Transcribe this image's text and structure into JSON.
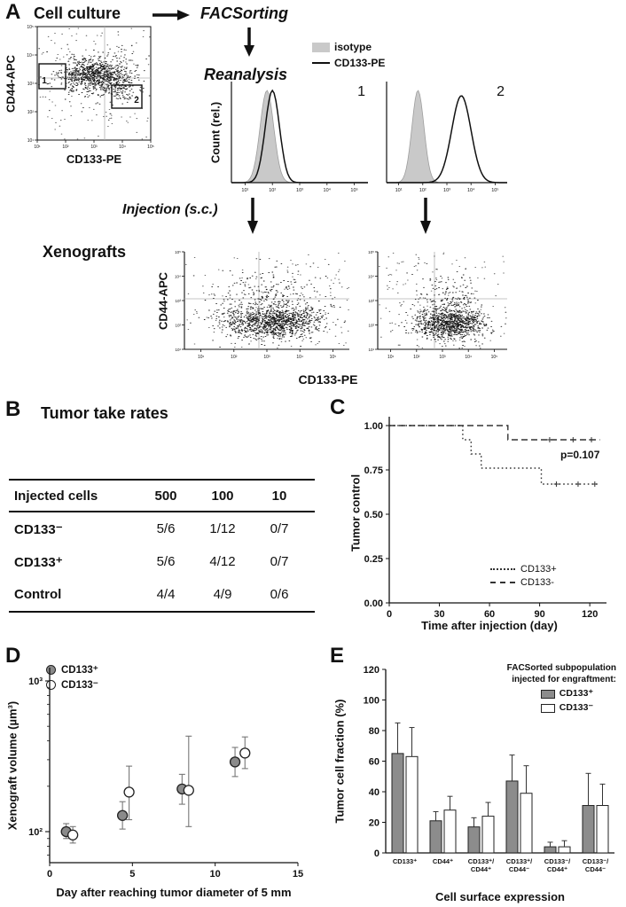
{
  "panelA": {
    "label": "A",
    "cell_culture": "Cell culture",
    "facsorting": "FACSorting",
    "reanalysis": "Reanalysis",
    "injection": "Injection (s.c.)",
    "xenografts": "Xenografts",
    "legend": {
      "isotype": "isotype",
      "cd133": "CD133-PE"
    },
    "sort_plot": {
      "ylabel": "CD44-APC",
      "xlabel": "CD133-PE",
      "gate1": "1",
      "gate2": "2",
      "xticks": [
        "10¹",
        "10²",
        "10³",
        "10⁴",
        "10⁵"
      ],
      "yticks": [
        "10⁵",
        "10⁴",
        "10³",
        "10²",
        "10¹"
      ]
    },
    "histograms": {
      "ylabel": "Count (rel.)",
      "panels": [
        {
          "label": "1"
        },
        {
          "label": "2"
        }
      ],
      "xticks": [
        "10¹",
        "10²",
        "10³",
        "10⁴",
        "10⁵"
      ]
    },
    "xeno_plots": {
      "ylabel": "CD44-APC",
      "xlabel": "CD133-PE",
      "xticks": [
        "10¹",
        "10²",
        "10³",
        "10⁴",
        "10⁵"
      ],
      "yticks": [
        "10⁵",
        "10⁴",
        "10³",
        "10²",
        "10¹"
      ]
    }
  },
  "panelB": {
    "label": "B",
    "title": "Tumor take rates",
    "table": {
      "header": [
        "Injected cells",
        "500",
        "100",
        "10"
      ],
      "rows": [
        [
          "CD133⁻",
          "5/6",
          "1/12",
          "0/7"
        ],
        [
          "CD133⁺",
          "5/6",
          "4/12",
          "0/7"
        ],
        [
          "Control",
          "4/4",
          "4/9",
          "0/6"
        ]
      ]
    }
  },
  "panelC": {
    "label": "C",
    "ylabel": "Tumor control",
    "xlabel": "Time after injection (day)",
    "pvalue": "p=0.107"
  },
  "panelD": {
    "label": "D",
    "ylabel": "Xenograft volume (µm³)",
    "xlabel": "Day after reaching tumor diameter of 5 mm"
  },
  "panelE": {
    "label": "E",
    "ylabel": "Tumor cell fraction (%)",
    "xlabel": "Cell surface expression",
    "legend_title_line1": "FACSorted subpopulation",
    "legend_title_line2": "injected for engraftment:"
  },
  "chart_data": [
    {
      "id": "panelC_tumor_control",
      "type": "line",
      "ylabel": "Tumor control",
      "xlabel": "Time after injection (day)",
      "xlim": [
        0,
        130
      ],
      "ylim": [
        0,
        1.05
      ],
      "xticks": [
        0,
        30,
        60,
        90,
        120
      ],
      "yticks": [
        {
          "v": 1.0,
          "label": "1.00"
        },
        {
          "v": 0.75,
          "label": "0.75"
        },
        {
          "v": 0.5,
          "label": "0.50"
        },
        {
          "v": 0.25,
          "label": "0.25"
        },
        {
          "v": 0.0,
          "label": "0.00"
        }
      ],
      "annotation": "p=0.107",
      "series": [
        {
          "name": "CD133+",
          "style": "dotted",
          "steps": [
            [
              0,
              1.0
            ],
            [
              44,
              1.0
            ],
            [
              44,
              0.92
            ],
            [
              49,
              0.92
            ],
            [
              49,
              0.84
            ],
            [
              55,
              0.84
            ],
            [
              55,
              0.76
            ],
            [
              91,
              0.76
            ],
            [
              91,
              0.67
            ],
            [
              126,
              0.67
            ]
          ],
          "censor_marks": [
            [
              100,
              0.67
            ],
            [
              113,
              0.67
            ],
            [
              123,
              0.67
            ]
          ]
        },
        {
          "name": "CD133-",
          "style": "dashed",
          "steps": [
            [
              0,
              1.0
            ],
            [
              71,
              1.0
            ],
            [
              71,
              0.92
            ],
            [
              126,
              0.92
            ]
          ],
          "censor_marks": [
            [
              96,
              0.92
            ],
            [
              110,
              0.92
            ],
            [
              121,
              0.92
            ]
          ]
        }
      ]
    },
    {
      "id": "panelD_xenograft_volume",
      "type": "scatter",
      "yscale": "log",
      "ylabel": "Xenograft volume (µm³)",
      "xlabel": "Day after reaching tumor diameter of 5 mm",
      "xlim": [
        0,
        15
      ],
      "xticks": [
        0,
        5,
        10,
        15
      ],
      "yticks": [
        {
          "value": 1000,
          "label": "10³"
        },
        {
          "value": 100,
          "label": "10²"
        }
      ],
      "series": [
        {
          "name": "CD133⁺",
          "marker": "filled",
          "points": [
            {
              "x": 1.0,
              "y": 100,
              "lo": 90,
              "hi": 113
            },
            {
              "x": 4.4,
              "y": 128,
              "lo": 104,
              "hi": 158
            },
            {
              "x": 8.0,
              "y": 192,
              "lo": 152,
              "hi": 240
            },
            {
              "x": 11.2,
              "y": 290,
              "lo": 232,
              "hi": 362
            }
          ]
        },
        {
          "name": "CD133⁻",
          "marker": "open",
          "points": [
            {
              "x": 1.4,
              "y": 95,
              "lo": 84,
              "hi": 108
            },
            {
              "x": 4.8,
              "y": 183,
              "lo": 120,
              "hi": 272
            },
            {
              "x": 8.4,
              "y": 188,
              "lo": 108,
              "hi": 430
            },
            {
              "x": 11.8,
              "y": 332,
              "lo": 262,
              "hi": 425
            }
          ]
        }
      ]
    },
    {
      "id": "panelE_tumor_cell_fraction",
      "type": "bar",
      "ylabel": "Tumor cell fraction (%)",
      "xlabel": "Cell surface expression",
      "ylim": [
        0,
        120
      ],
      "yticks": [
        0,
        20,
        40,
        60,
        80,
        100,
        120
      ],
      "categories": [
        "CD133⁺",
        "CD44⁺",
        "CD133⁺/CD44⁺",
        "CD133⁺/CD44⁻",
        "CD133⁻/CD44⁺",
        "CD133⁻/CD44⁻"
      ],
      "category_lines": [
        [
          "CD133⁺"
        ],
        [
          "CD44⁺"
        ],
        [
          "CD133⁺/",
          "CD44⁺"
        ],
        [
          "CD133⁺/",
          "CD44⁻"
        ],
        [
          "CD133⁻/",
          "CD44⁺"
        ],
        [
          "CD133⁻/",
          "CD44⁻"
        ]
      ],
      "series": [
        {
          "name": "CD133⁺",
          "fill": "#8c8c8c",
          "values": [
            65,
            21,
            17,
            47,
            4,
            31
          ],
          "errors": [
            20,
            6,
            6,
            17,
            3,
            21
          ]
        },
        {
          "name": "CD133⁻",
          "fill": "#ffffff",
          "values": [
            63,
            28,
            24,
            39,
            4,
            31
          ],
          "errors": [
            19,
            9,
            9,
            18,
            4,
            14
          ]
        }
      ]
    }
  ]
}
